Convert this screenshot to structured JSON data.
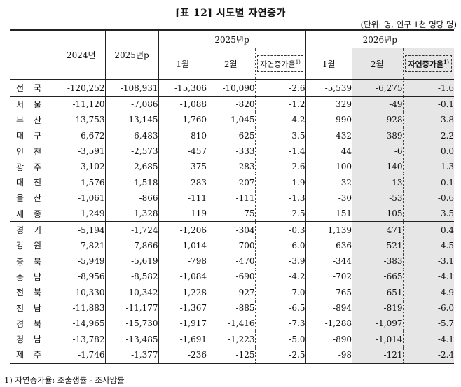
{
  "title": "[표 12] 시도별 자연증가",
  "unit_note": "(단위: 명, 인구 1천 명당 명)",
  "header": {
    "col_2024": "2024년",
    "col_2025": "2025년p",
    "group_2025": "2025년p",
    "group_2026": "2026년p",
    "sub_jan": "1월",
    "sub_feb": "2월",
    "sub_rate": "자연증가율",
    "sup": "1)"
  },
  "total": {
    "region": "전국",
    "values": [
      "-120,252",
      "-108,931",
      "-15,306",
      "-10,090",
      "-2.6",
      "-5,539",
      "-6,275",
      "-1.6"
    ]
  },
  "group1": [
    {
      "region": "서울",
      "values": [
        "-11,120",
        "-7,086",
        "-1,088",
        "-820",
        "-1.2",
        "329",
        "-49",
        "-0.1"
      ]
    },
    {
      "region": "부산",
      "values": [
        "-13,753",
        "-13,145",
        "-1,760",
        "-1,045",
        "-4.2",
        "-990",
        "-928",
        "-3.8"
      ]
    },
    {
      "region": "대구",
      "values": [
        "-6,672",
        "-6,483",
        "-810",
        "-625",
        "-3.5",
        "-432",
        "-389",
        "-2.2"
      ]
    },
    {
      "region": "인천",
      "values": [
        "-3,591",
        "-2,573",
        "-457",
        "-333",
        "-1.4",
        "44",
        "-6",
        "0.0"
      ]
    },
    {
      "region": "광주",
      "values": [
        "-3,102",
        "-2,685",
        "-375",
        "-283",
        "-2.6",
        "-100",
        "-140",
        "-1.3"
      ]
    },
    {
      "region": "대전",
      "values": [
        "-1,576",
        "-1,518",
        "-283",
        "-207",
        "-1.9",
        "-32",
        "-13",
        "-0.1"
      ]
    },
    {
      "region": "울산",
      "values": [
        "-1,061",
        "-866",
        "-111",
        "-111",
        "-1.3",
        "-30",
        "-53",
        "-0.6"
      ]
    },
    {
      "region": "세종",
      "values": [
        "1,249",
        "1,328",
        "119",
        "75",
        "2.5",
        "151",
        "105",
        "3.5"
      ]
    }
  ],
  "group2": [
    {
      "region": "경기",
      "values": [
        "-5,194",
        "-1,724",
        "-1,206",
        "-304",
        "-0.3",
        "1,139",
        "471",
        "0.4"
      ]
    },
    {
      "region": "강원",
      "values": [
        "-7,821",
        "-7,866",
        "-1,014",
        "-700",
        "-6.0",
        "-636",
        "-521",
        "-4.5"
      ]
    },
    {
      "region": "충북",
      "values": [
        "-5,949",
        "-5,619",
        "-798",
        "-470",
        "-3.9",
        "-344",
        "-383",
        "-3.1"
      ]
    },
    {
      "region": "충남",
      "values": [
        "-8,956",
        "-8,582",
        "-1,084",
        "-690",
        "-4.2",
        "-702",
        "-665",
        "-4.1"
      ]
    },
    {
      "region": "전북",
      "values": [
        "-10,330",
        "-10,342",
        "-1,228",
        "-927",
        "-7.0",
        "-765",
        "-651",
        "-4.9"
      ]
    },
    {
      "region": "전남",
      "values": [
        "-11,883",
        "-11,177",
        "-1,367",
        "-885",
        "-6.5",
        "-894",
        "-819",
        "-6.0"
      ]
    },
    {
      "region": "경북",
      "values": [
        "-14,965",
        "-15,730",
        "-1,917",
        "-1,416",
        "-7.3",
        "-1,288",
        "-1,097",
        "-5.7"
      ]
    },
    {
      "region": "경남",
      "values": [
        "-13,782",
        "-13,485",
        "-1,691",
        "-1,223",
        "-5.0",
        "-890",
        "-1,014",
        "-4.1"
      ]
    },
    {
      "region": "제주",
      "values": [
        "-1,746",
        "-1,377",
        "-236",
        "-125",
        "-2.5",
        "-98",
        "-121",
        "-2.4"
      ]
    }
  ],
  "footnote": "1) 자연증가율: 조출생률 - 조사망률"
}
